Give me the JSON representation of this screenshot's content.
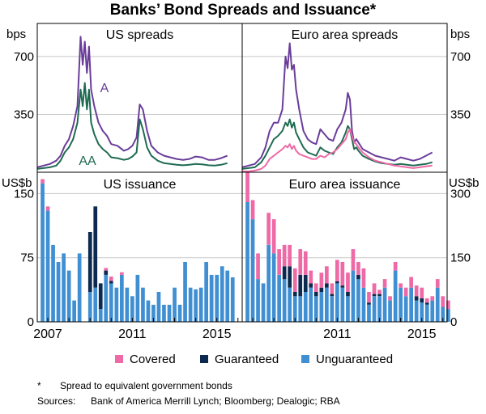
{
  "title": "Banks’ Bond Spreads and Issuance*",
  "colors": {
    "A": "#6a3d9a",
    "AA": "#1f6b52",
    "euro_pink_spread": "#ee6aa7",
    "covered": "#ee6aa7",
    "guaranteed": "#0c2a4f",
    "unguaranteed": "#3f8fd2"
  },
  "footnote": {
    "marker": "*",
    "text": "Spread to equivalent government bonds"
  },
  "sources": {
    "label": "Sources:",
    "text": "Bank of America Merrill Lynch; Bloomberg; Dealogic; RBA"
  },
  "chart_data": [
    {
      "panel": "US spreads",
      "type": "line",
      "title": "US spreads",
      "ylabel": "bps",
      "ylim": [
        0,
        900
      ],
      "yticks": [
        350,
        700
      ],
      "xlim": [
        2006.5,
        2016.2
      ],
      "series": [
        {
          "name": "A",
          "color": "#6a3d9a",
          "x": [
            2006.5,
            2006.8,
            2007.1,
            2007.4,
            2007.6,
            2007.8,
            2008.0,
            2008.2,
            2008.4,
            2008.55,
            2008.65,
            2008.75,
            2008.85,
            2008.95,
            2009.05,
            2009.2,
            2009.4,
            2009.6,
            2009.8,
            2010.0,
            2010.3,
            2010.6,
            2010.8,
            2011.0,
            2011.2,
            2011.35,
            2011.5,
            2011.7,
            2011.9,
            2012.2,
            2012.5,
            2012.8,
            2013.1,
            2013.4,
            2013.7,
            2014.0,
            2014.3,
            2014.6,
            2014.9,
            2015.2,
            2015.5
          ],
          "values": [
            30,
            40,
            50,
            70,
            100,
            160,
            200,
            280,
            400,
            820,
            650,
            790,
            600,
            760,
            500,
            400,
            300,
            250,
            220,
            170,
            160,
            130,
            140,
            160,
            210,
            410,
            380,
            250,
            160,
            120,
            100,
            90,
            80,
            75,
            80,
            95,
            90,
            75,
            75,
            85,
            100
          ]
        },
        {
          "name": "AA",
          "color": "#1f6b52",
          "x": [
            2006.5,
            2006.8,
            2007.1,
            2007.4,
            2007.6,
            2007.8,
            2008.0,
            2008.2,
            2008.4,
            2008.55,
            2008.65,
            2008.75,
            2008.85,
            2008.95,
            2009.05,
            2009.2,
            2009.4,
            2009.6,
            2009.8,
            2010.0,
            2010.3,
            2010.6,
            2010.8,
            2011.0,
            2011.2,
            2011.35,
            2011.5,
            2011.7,
            2011.9,
            2012.2,
            2012.5,
            2012.8,
            2013.1,
            2013.4,
            2013.7,
            2014.0,
            2014.3,
            2014.6,
            2014.9,
            2015.2,
            2015.5
          ],
          "values": [
            20,
            25,
            30,
            40,
            70,
            120,
            150,
            200,
            300,
            500,
            400,
            540,
            380,
            500,
            300,
            230,
            170,
            140,
            120,
            90,
            85,
            75,
            80,
            95,
            120,
            320,
            260,
            150,
            100,
            70,
            55,
            50,
            45,
            42,
            45,
            50,
            48,
            42,
            40,
            45,
            55
          ]
        }
      ]
    },
    {
      "panel": "Euro area spreads",
      "type": "line",
      "title": "Euro area spreads",
      "ylabel": "bps",
      "ylim": [
        0,
        900
      ],
      "yticks": [
        350,
        700
      ],
      "xlim": [
        2006.5,
        2016.2
      ],
      "series": [
        {
          "color": "#6a3d9a",
          "x": [
            2006.5,
            2006.8,
            2007.1,
            2007.4,
            2007.6,
            2007.8,
            2008.0,
            2008.2,
            2008.4,
            2008.55,
            2008.65,
            2008.75,
            2008.85,
            2008.95,
            2009.05,
            2009.2,
            2009.4,
            2009.6,
            2009.8,
            2010.0,
            2010.2,
            2010.4,
            2010.6,
            2010.8,
            2011.0,
            2011.2,
            2011.4,
            2011.5,
            2011.6,
            2011.7,
            2011.8,
            2011.9,
            2012.0,
            2012.2,
            2012.5,
            2012.8,
            2013.1,
            2013.4,
            2013.7,
            2014.0,
            2014.3,
            2014.6,
            2014.9,
            2015.2,
            2015.5
          ],
          "values": [
            30,
            40,
            50,
            90,
            150,
            250,
            300,
            300,
            380,
            700,
            630,
            780,
            620,
            650,
            500,
            380,
            250,
            200,
            180,
            170,
            260,
            230,
            200,
            190,
            260,
            300,
            380,
            480,
            440,
            250,
            180,
            200,
            180,
            140,
            120,
            100,
            90,
            80,
            70,
            90,
            80,
            70,
            80,
            100,
            120
          ]
        },
        {
          "color": "#1f6b52",
          "x": [
            2006.5,
            2006.8,
            2007.1,
            2007.4,
            2007.6,
            2007.8,
            2008.0,
            2008.2,
            2008.4,
            2008.55,
            2008.65,
            2008.75,
            2008.85,
            2008.95,
            2009.05,
            2009.2,
            2009.4,
            2009.6,
            2009.8,
            2010.0,
            2010.2,
            2010.4,
            2010.6,
            2010.8,
            2011.0,
            2011.2,
            2011.4,
            2011.5,
            2011.6,
            2011.7,
            2011.8,
            2011.9,
            2012.0,
            2012.2,
            2012.5,
            2012.8,
            2013.1,
            2013.4,
            2013.7,
            2014.0,
            2014.3,
            2014.6,
            2014.9,
            2015.2,
            2015.5
          ],
          "values": [
            20,
            25,
            30,
            60,
            100,
            150,
            200,
            220,
            250,
            300,
            280,
            320,
            270,
            300,
            240,
            200,
            150,
            120,
            110,
            100,
            150,
            130,
            120,
            110,
            150,
            180,
            240,
            280,
            260,
            200,
            140,
            150,
            130,
            100,
            80,
            65,
            55,
            50,
            45,
            50,
            45,
            40,
            45,
            50,
            60
          ]
        },
        {
          "color": "#ee6aa7",
          "x": [
            2006.5,
            2006.8,
            2007.1,
            2007.4,
            2007.6,
            2007.8,
            2008.0,
            2008.2,
            2008.4,
            2008.55,
            2008.65,
            2008.75,
            2008.85,
            2008.95,
            2009.05,
            2009.2,
            2009.4,
            2009.6,
            2009.8,
            2010.0,
            2010.2,
            2010.4,
            2010.6,
            2010.8,
            2011.0,
            2011.2,
            2011.4,
            2011.5,
            2011.6,
            2011.7,
            2011.8,
            2011.9,
            2012.0,
            2012.2,
            2012.5,
            2012.8,
            2013.1,
            2013.4,
            2013.7,
            2014.0,
            2014.3,
            2014.6,
            2014.9,
            2015.2,
            2015.5
          ],
          "values": [
            5,
            5,
            10,
            20,
            40,
            80,
            100,
            120,
            140,
            160,
            150,
            170,
            140,
            160,
            130,
            110,
            100,
            90,
            80,
            80,
            100,
            90,
            110,
            120,
            140,
            170,
            200,
            240,
            260,
            220,
            180,
            170,
            150,
            120,
            90,
            70,
            60,
            50,
            40,
            35,
            30,
            25,
            30,
            35,
            40
          ]
        }
      ]
    },
    {
      "panel": "US issuance",
      "type": "bar",
      "stacked": true,
      "title": "US issuance",
      "ylabel": "US$b",
      "ylim": [
        0,
        175
      ],
      "yticks": [
        0,
        75,
        150
      ],
      "xticklabels": [
        "2007",
        "2011",
        "2015"
      ],
      "first_quarter": 2006.75,
      "series": [
        {
          "name": "Covered",
          "color": "#ee6aa7",
          "values": [
            5,
            5,
            0,
            0,
            0,
            0,
            0,
            0,
            0,
            0,
            0,
            0,
            3,
            5,
            0,
            3,
            0,
            0,
            0,
            0,
            0,
            0,
            0,
            0,
            0,
            0,
            0,
            0,
            0,
            0,
            0,
            0,
            0,
            0,
            0,
            0,
            0
          ]
        },
        {
          "name": "Guaranteed",
          "color": "#0c2a4f",
          "values": [
            0,
            0,
            0,
            0,
            0,
            0,
            0,
            0,
            0,
            70,
            95,
            30,
            5,
            3,
            0,
            0,
            0,
            0,
            0,
            0,
            0,
            0,
            0,
            0,
            0,
            0,
            0,
            0,
            0,
            0,
            0,
            0,
            0,
            0,
            0,
            0,
            0
          ]
        },
        {
          "name": "Unguaranteed",
          "color": "#3f8fd2",
          "values": [
            162,
            130,
            90,
            70,
            80,
            60,
            25,
            80,
            0,
            35,
            40,
            15,
            55,
            45,
            40,
            55,
            40,
            30,
            55,
            40,
            25,
            20,
            35,
            20,
            20,
            40,
            20,
            70,
            40,
            38,
            40,
            70,
            55,
            55,
            65,
            60,
            52
          ]
        }
      ]
    },
    {
      "panel": "Euro area issuance",
      "type": "bar",
      "stacked": true,
      "title": "Euro area issuance",
      "ylabel": "US$b",
      "ylim": [
        0,
        350
      ],
      "yticks": [
        0,
        150,
        300
      ],
      "xticklabels": [
        "2011",
        "2015"
      ],
      "first_quarter": 2006.75,
      "series": [
        {
          "name": "Covered",
          "color": "#ee6aa7",
          "values": [
            70,
            45,
            60,
            0,
            75,
            80,
            60,
            50,
            50,
            55,
            60,
            55,
            30,
            20,
            35,
            40,
            25,
            50,
            55,
            45,
            50,
            30,
            45,
            25,
            25,
            10,
            20,
            10,
            20,
            10,
            20,
            25,
            25,
            25,
            10,
            10,
            20,
            25,
            20
          ]
        },
        {
          "name": "Guaranteed",
          "color": "#0c2a4f",
          "values": [
            0,
            0,
            0,
            0,
            0,
            0,
            0,
            30,
            50,
            10,
            50,
            40,
            10,
            10,
            10,
            10,
            5,
            5,
            5,
            10,
            0,
            10,
            0,
            5,
            5,
            5,
            0,
            0,
            0,
            0,
            0,
            0,
            10,
            10,
            5,
            0,
            0,
            0,
            0
          ]
        },
        {
          "name": "Unguaranteed",
          "color": "#3f8fd2",
          "values": [
            280,
            240,
            100,
            90,
            180,
            160,
            110,
            100,
            80,
            60,
            60,
            70,
            80,
            60,
            70,
            80,
            60,
            90,
            80,
            60,
            120,
            100,
            80,
            40,
            60,
            60,
            80,
            50,
            120,
            80,
            60,
            80,
            50,
            45,
            40,
            50,
            80,
            35,
            30
          ]
        }
      ]
    }
  ]
}
